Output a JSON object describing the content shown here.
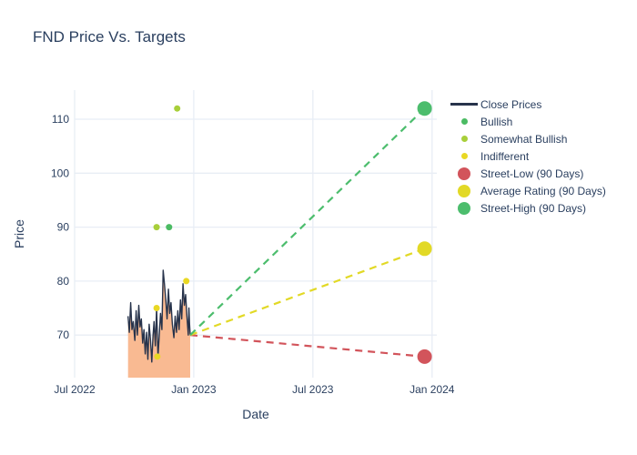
{
  "chart_data": {
    "type": "line+scatter",
    "title": "FND Price Vs. Targets",
    "xlabel": "Date",
    "ylabel": "Price",
    "x_ticks": [
      {
        "label": "Jul 2022",
        "m": 0
      },
      {
        "label": "Jan 2023",
        "m": 6
      },
      {
        "label": "Jul 2023",
        "m": 12
      },
      {
        "label": "Jan 2024",
        "m": 18
      }
    ],
    "y_ticks": [
      70,
      80,
      90,
      100,
      110
    ],
    "x_range_months": [
      0,
      18.24
    ],
    "y_range": [
      62.1,
      115.4
    ],
    "grid": true,
    "grid_color": "#e8edf5",
    "text_color": "#2a3f5f",
    "legend_position": "right-top",
    "close_prices": {
      "name": "Close Prices",
      "line_color": "#27334b",
      "fill_color": "#f9ba92",
      "points": [
        [
          "2022-09-22",
          73.5
        ],
        [
          "2022-09-24",
          70.5
        ],
        [
          "2022-09-26",
          76
        ],
        [
          "2022-09-28",
          71
        ],
        [
          "2022-09-30",
          72.5
        ],
        [
          "2022-10-02",
          69
        ],
        [
          "2022-10-04",
          74.5
        ],
        [
          "2022-10-06",
          70
        ],
        [
          "2022-10-08",
          75.5
        ],
        [
          "2022-10-10",
          71.5
        ],
        [
          "2022-10-12",
          73
        ],
        [
          "2022-10-14",
          68.5
        ],
        [
          "2022-10-16",
          71
        ],
        [
          "2022-10-18",
          66.5
        ],
        [
          "2022-10-20",
          70.5
        ],
        [
          "2022-10-22",
          65.5
        ],
        [
          "2022-10-24",
          72
        ],
        [
          "2022-10-26",
          69
        ],
        [
          "2022-10-28",
          65
        ],
        [
          "2022-10-30",
          70
        ],
        [
          "2022-11-01",
          72.5
        ],
        [
          "2022-11-03",
          68
        ],
        [
          "2022-11-05",
          75
        ],
        [
          "2022-11-07",
          66
        ],
        [
          "2022-11-09",
          70
        ],
        [
          "2022-11-11",
          74
        ],
        [
          "2022-11-13",
          71
        ],
        [
          "2022-11-15",
          82
        ],
        [
          "2022-11-17",
          79.5
        ],
        [
          "2022-11-19",
          76.5
        ],
        [
          "2022-11-21",
          73
        ],
        [
          "2022-11-23",
          78.5
        ],
        [
          "2022-11-25",
          74
        ],
        [
          "2022-11-27",
          76
        ],
        [
          "2022-11-29",
          72
        ],
        [
          "2022-12-01",
          69.5
        ],
        [
          "2022-12-03",
          73.5
        ],
        [
          "2022-12-05",
          70.5
        ],
        [
          "2022-12-07",
          74.5
        ],
        [
          "2022-12-09",
          71
        ],
        [
          "2022-12-11",
          76.5
        ],
        [
          "2022-12-13",
          73
        ],
        [
          "2022-12-15",
          79.5
        ],
        [
          "2022-12-17",
          75.5
        ],
        [
          "2022-12-19",
          77.5
        ],
        [
          "2022-12-21",
          73.5
        ],
        [
          "2022-12-23",
          70
        ],
        [
          "2022-12-24",
          75
        ],
        [
          "2022-12-25",
          72
        ],
        [
          "2022-12-26",
          70
        ]
      ]
    },
    "ratings": [
      {
        "name": "Bullish",
        "color": "#4bbb63",
        "dot_radius": 3.5,
        "points": [
          [
            "2022-11-24",
            90
          ]
        ]
      },
      {
        "name": "Somewhat Bullish",
        "color": "#a8cf3a",
        "dot_radius": 3.5,
        "points": [
          [
            "2022-11-05",
            90
          ],
          [
            "2022-12-06",
            112
          ]
        ]
      },
      {
        "name": "Indifferent",
        "color": "#e9d824",
        "dot_radius": 3.5,
        "points": [
          [
            "2022-11-05",
            75
          ],
          [
            "2022-11-06",
            66
          ],
          [
            "2022-12-20",
            80
          ]
        ]
      }
    ],
    "projection_origin": [
      "2022-12-26",
      70
    ],
    "targets": [
      {
        "name": "Street-Low (90 Days)",
        "color": "#d2545b",
        "date": "2023-12-20",
        "price": 66,
        "marker_radius": 8
      },
      {
        "name": "Average Rating (90 Days)",
        "color": "#e2d926",
        "date": "2023-12-20",
        "price": 86,
        "marker_radius": 8
      },
      {
        "name": "Street-High (90 Days)",
        "color": "#4cbd6d",
        "date": "2023-12-20",
        "price": 112,
        "marker_radius": 8
      }
    ]
  },
  "legend": {
    "items": [
      {
        "label": "Close Prices",
        "marker": "line",
        "color": "#27334b"
      },
      {
        "label": "Bullish",
        "marker": "dot",
        "diameter": 7,
        "color": "#4bbb63"
      },
      {
        "label": "Somewhat Bullish",
        "marker": "dot",
        "diameter": 7,
        "color": "#a8cf3a"
      },
      {
        "label": "Indifferent",
        "marker": "dot",
        "diameter": 7,
        "color": "#e9d824"
      },
      {
        "label": "Street-Low (90 Days)",
        "marker": "dot",
        "diameter": 14,
        "color": "#d2545b"
      },
      {
        "label": "Average Rating (90 Days)",
        "marker": "dot",
        "diameter": 14,
        "color": "#e2d926"
      },
      {
        "label": "Street-High (90 Days)",
        "marker": "dot",
        "diameter": 14,
        "color": "#4cbd6d"
      }
    ]
  }
}
